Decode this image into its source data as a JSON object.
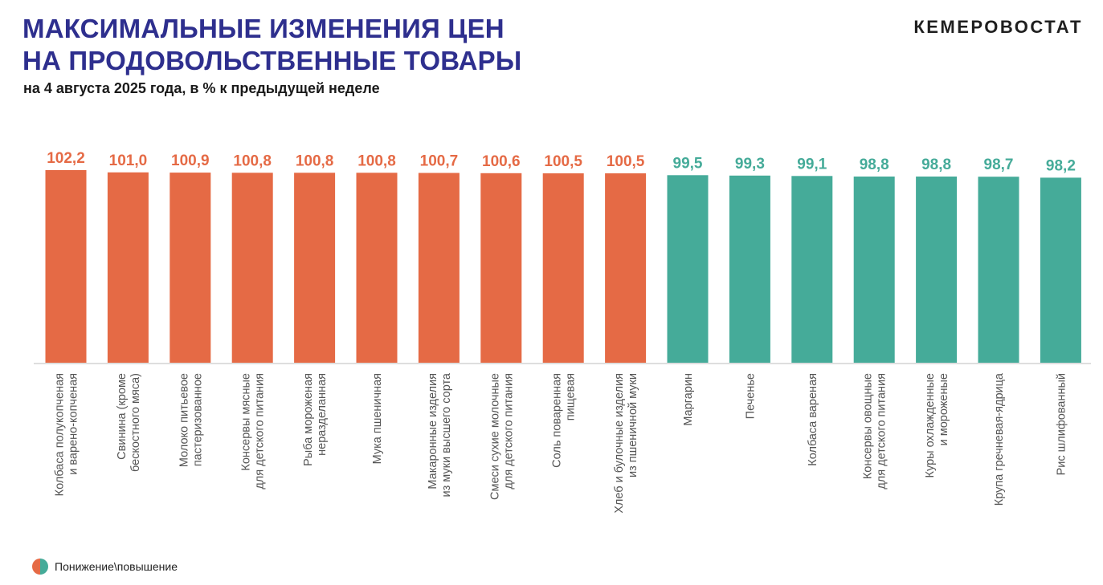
{
  "header": {
    "title_line1": "МАКСИМАЛЬНЫЕ ИЗМЕНЕНИЯ ЦЕН",
    "title_line2": "НА ПРОДОВОЛЬСТВЕННЫЕ ТОВАРЫ",
    "subtitle": "на 4 августа 2025 года, в % к предыдущей неделе",
    "brand": "КЕМЕРОВОСТАТ"
  },
  "legend": {
    "label": "Понижение\\повышение",
    "colors": {
      "increase": "#e56a45",
      "decrease": "#45ab99"
    }
  },
  "chart_data": {
    "type": "bar",
    "categories": [
      [
        "Колбаса полукопченая",
        "и варено-копченая"
      ],
      [
        "Свинина (кроме",
        "бескостного мяса)"
      ],
      [
        "Молоко питьевое",
        "пастеризованное"
      ],
      [
        "Консервы мясные",
        "для детского питания"
      ],
      [
        "Рыба мороженая",
        "неразделанная"
      ],
      [
        "Мука пшеничная"
      ],
      [
        "Макаронные изделия",
        "из муки высшего сорта"
      ],
      [
        "Смеси сухие молочные",
        "для детского питания"
      ],
      [
        "Соль поваренная",
        "пищевая"
      ],
      [
        "Хлеб и булочные изделия",
        "из пшеничной муки"
      ],
      [
        "Маргарин"
      ],
      [
        "Печенье"
      ],
      [
        "Колбаса вареная"
      ],
      [
        "Консервы овощные",
        "для детского питания"
      ],
      [
        "Куры охлажденные",
        "и мороженые"
      ],
      [
        "Крупа гречневая-ядрица"
      ],
      [
        "Рис шлифованный"
      ]
    ],
    "values": [
      102.2,
      101.0,
      100.9,
      100.8,
      100.8,
      100.8,
      100.7,
      100.6,
      100.5,
      100.5,
      99.5,
      99.3,
      99.1,
      98.8,
      98.8,
      98.7,
      98.2
    ],
    "value_labels": [
      "102,2",
      "101,0",
      "100,9",
      "100,8",
      "100,8",
      "100,8",
      "100,7",
      "100,6",
      "100,5",
      "100,5",
      "99,5",
      "99,3",
      "99,1",
      "98,8",
      "98,8",
      "98,7",
      "98,2"
    ],
    "ylim": [
      0,
      102.2
    ],
    "grid": false,
    "legend_position": "bottom-left"
  }
}
